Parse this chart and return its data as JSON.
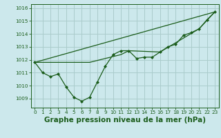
{
  "background_color": "#cce8ec",
  "grid_color": "#aacccc",
  "line_color": "#1a5c1a",
  "title": "Graphe pression niveau de la mer (hPa)",
  "title_fontsize": 7.5,
  "xlim": [
    -0.5,
    23.5
  ],
  "ylim": [
    1008.3,
    1016.3
  ],
  "yticks": [
    1009,
    1010,
    1011,
    1012,
    1013,
    1014,
    1015,
    1016
  ],
  "xticks": [
    0,
    1,
    2,
    3,
    4,
    5,
    6,
    7,
    8,
    9,
    10,
    11,
    12,
    13,
    14,
    15,
    16,
    17,
    18,
    19,
    20,
    21,
    22,
    23
  ],
  "series1_x": [
    0,
    1,
    2,
    3,
    4,
    5,
    6,
    7,
    8,
    9,
    10,
    11,
    12,
    13,
    14,
    15,
    16,
    17,
    18,
    19,
    20,
    21,
    22,
    23
  ],
  "series1_y": [
    1011.8,
    1011.0,
    1010.7,
    1010.9,
    1009.9,
    1009.1,
    1008.8,
    1009.1,
    1010.3,
    1011.5,
    1012.4,
    1012.7,
    1012.7,
    1012.1,
    1012.2,
    1012.2,
    1012.6,
    1013.0,
    1013.2,
    1013.9,
    1014.1,
    1014.4,
    1015.1,
    1015.7
  ],
  "series2_x": [
    0,
    23
  ],
  "series2_y": [
    1011.8,
    1015.7
  ],
  "series3_x": [
    0,
    7,
    11,
    12,
    16,
    21,
    23
  ],
  "series3_y": [
    1011.8,
    1011.8,
    1012.4,
    1012.7,
    1012.6,
    1014.4,
    1015.7
  ]
}
